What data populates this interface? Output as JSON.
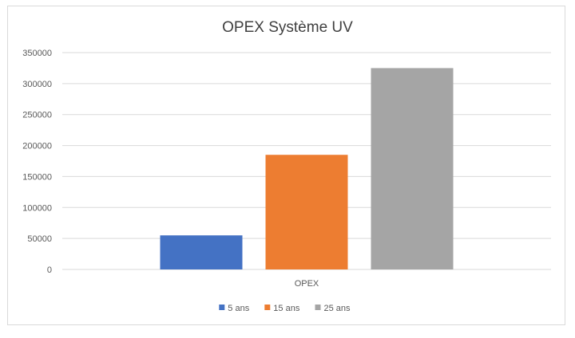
{
  "chart_data": {
    "type": "bar",
    "title": "OPEX Système UV",
    "categories": [
      "OPEX"
    ],
    "series": [
      {
        "name": "5 ans",
        "values": [
          55000
        ],
        "color": "#4472c4"
      },
      {
        "name": "15 ans",
        "values": [
          185000
        ],
        "color": "#ed7d31"
      },
      {
        "name": "25 ans",
        "values": [
          325000
        ],
        "color": "#a5a5a5"
      }
    ],
    "ylim": [
      0,
      350000
    ],
    "yticks": [
      0,
      50000,
      100000,
      150000,
      200000,
      250000,
      300000,
      350000
    ],
    "ytick_labels": [
      "0",
      "50000",
      "100000",
      "150000",
      "200000",
      "250000",
      "300000",
      "350000"
    ],
    "grid": true,
    "legend": "bottom",
    "xlabel": "",
    "ylabel": ""
  }
}
